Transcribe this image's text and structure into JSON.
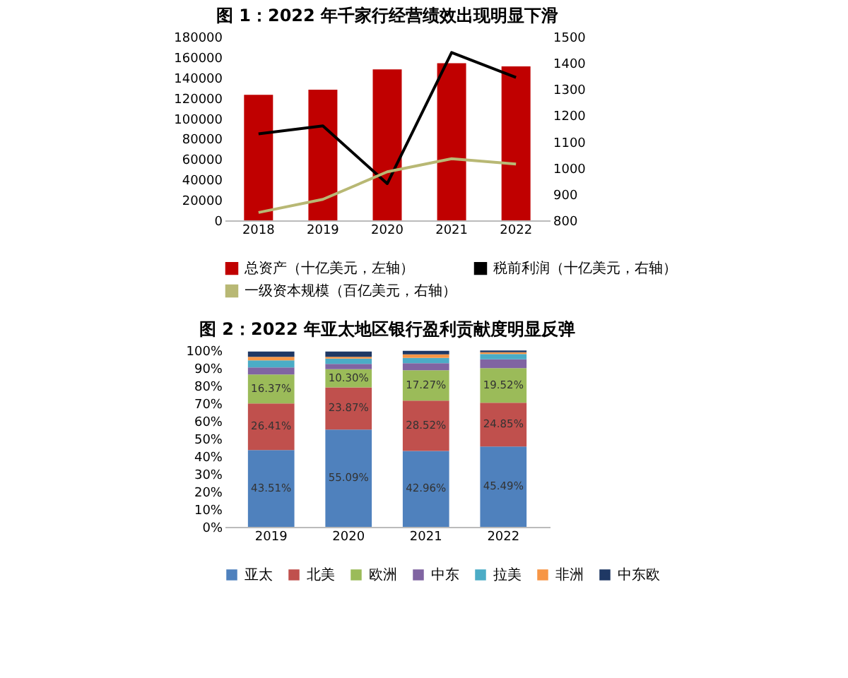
{
  "chart_data": [
    {
      "type": "bar",
      "title": "图 1：2022 年千家行经营绩效出现明显下滑",
      "categories": [
        "2018",
        "2019",
        "2020",
        "2021",
        "2022"
      ],
      "series": [
        {
          "name": "总资产（十亿美元，左轴）",
          "color": "#c00000",
          "values": [
            123000,
            128000,
            148000,
            154000,
            151000
          ]
        },
        {
          "name": "税前利润（十亿美元，右轴）",
          "color": "#000000",
          "type": "line",
          "axis": "y2",
          "values": [
            1130,
            1160,
            940,
            1440,
            1345
          ]
        },
        {
          "name": "一级资本规模（百亿美元，右轴）",
          "color": "#b8b874",
          "type": "line",
          "axis": "y2",
          "values": [
            830,
            880,
            985,
            1035,
            1015
          ]
        }
      ],
      "ylim": [
        0,
        180000
      ],
      "yticks": [
        0,
        20000,
        40000,
        60000,
        80000,
        100000,
        120000,
        140000,
        160000,
        180000
      ],
      "y2lim": [
        800,
        1500
      ],
      "y2ticks": [
        800,
        900,
        1000,
        1100,
        1200,
        1300,
        1400,
        1500
      ],
      "grid": false,
      "legend": "bottom",
      "marker": "none"
    },
    {
      "type": "bar",
      "title": "图 2：2022 年亚太地区银行盈利贡献度明显反弹",
      "categories": [
        "2019",
        "2020",
        "2021",
        "2022"
      ],
      "stacked": true,
      "series": [
        {
          "name": "亚太",
          "color": "#4f81bd",
          "values": [
            43.51,
            55.09,
            42.96,
            45.49
          ],
          "value_labels": [
            "43.51%",
            "55.09%",
            "42.96%",
            "45.49%"
          ]
        },
        {
          "name": "北美",
          "color": "#c0504d",
          "values": [
            26.41,
            23.87,
            28.52,
            24.85
          ],
          "value_labels": [
            "26.41%",
            "23.87%",
            "28.52%",
            "24.85%"
          ]
        },
        {
          "name": "欧洲",
          "color": "#9bbb59",
          "values": [
            16.37,
            10.3,
            17.27,
            19.52
          ],
          "value_labels": [
            "16.37%",
            "10.30%",
            "17.27%",
            "19.52%"
          ]
        },
        {
          "name": "中东",
          "color": "#8064a2",
          "values": [
            4,
            3,
            4,
            5
          ]
        },
        {
          "name": "拉美",
          "color": "#4bacc6",
          "values": [
            4,
            3,
            3,
            3
          ]
        },
        {
          "name": "非洲",
          "color": "#f79646",
          "values": [
            2,
            1,
            2,
            1
          ]
        },
        {
          "name": "中东欧",
          "color": "#1f3864",
          "values": [
            3,
            3,
            2,
            1
          ]
        }
      ],
      "ylim": [
        0,
        100
      ],
      "yticks": [
        {
          "value": 0,
          "label": "0%"
        },
        {
          "value": 10,
          "label": "10%"
        },
        {
          "value": 20,
          "label": "20%"
        },
        {
          "value": 30,
          "label": "30%"
        },
        {
          "value": 40,
          "label": "40%"
        },
        {
          "value": 50,
          "label": "50%"
        },
        {
          "value": 60,
          "label": "60%"
        },
        {
          "value": 70,
          "label": "70%"
        },
        {
          "value": 80,
          "label": "80%"
        },
        {
          "value": 90,
          "label": "90%"
        },
        {
          "value": 100,
          "label": "100%"
        }
      ],
      "grid": false,
      "legend": "bottom"
    }
  ]
}
